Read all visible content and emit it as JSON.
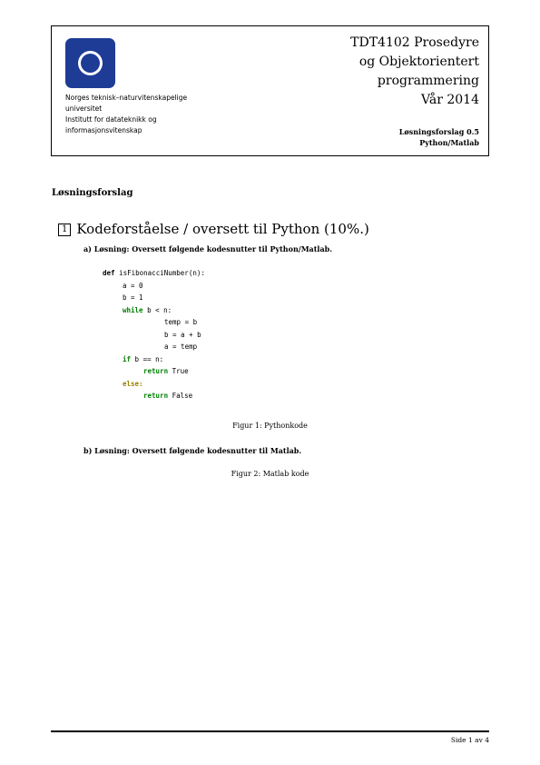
{
  "header": {
    "institution": [
      "Norges teknisk–naturvitenskapelige",
      "universitet",
      "Institutt for datateknikk og",
      "informasjonsvitenskap"
    ],
    "course": [
      "TDT4102  Prosedyre",
      "og Objektorientert",
      "programmering",
      "Vår 2014"
    ],
    "solution": [
      "Løsningsforslag 0.5",
      "Python/Matlab"
    ]
  },
  "body": {
    "heading": "Løsningsforslag",
    "section": {
      "number": "1",
      "title": "Kodeforståelse / oversett til Python (10%.)"
    },
    "task_a": "a) Løsning: Oversett følgende kodesnutter til Python/Matlab.",
    "code": {
      "line1_kw": "def",
      "line1_rest": " isFibonacciNumber(n):",
      "line2": "a = 0",
      "line3": "b = 1",
      "line4_kw": "while",
      "line4_rest": " b < n:",
      "line5": "temp = b",
      "line6": "b = a + b",
      "line7": "a = temp",
      "line8_kw": "if",
      "line8_rest": " b == n:",
      "line9_kw": "return",
      "line9_rest": " True",
      "line10_kw": "else:",
      "line11_kw": "return",
      "line11_rest": " False"
    },
    "figure1": "Figur 1: Pythonkode",
    "task_b": "b) Løsning: Oversett følgende kodesnutter til Matlab.",
    "figure2": "Figur 2: Matlab kode"
  },
  "footer": {
    "page": "Side 1 av 4"
  },
  "colors": {
    "logo_blue": "#1e3c96",
    "keyword_green": "#007f00",
    "keyword_gold": "#9a8000"
  }
}
